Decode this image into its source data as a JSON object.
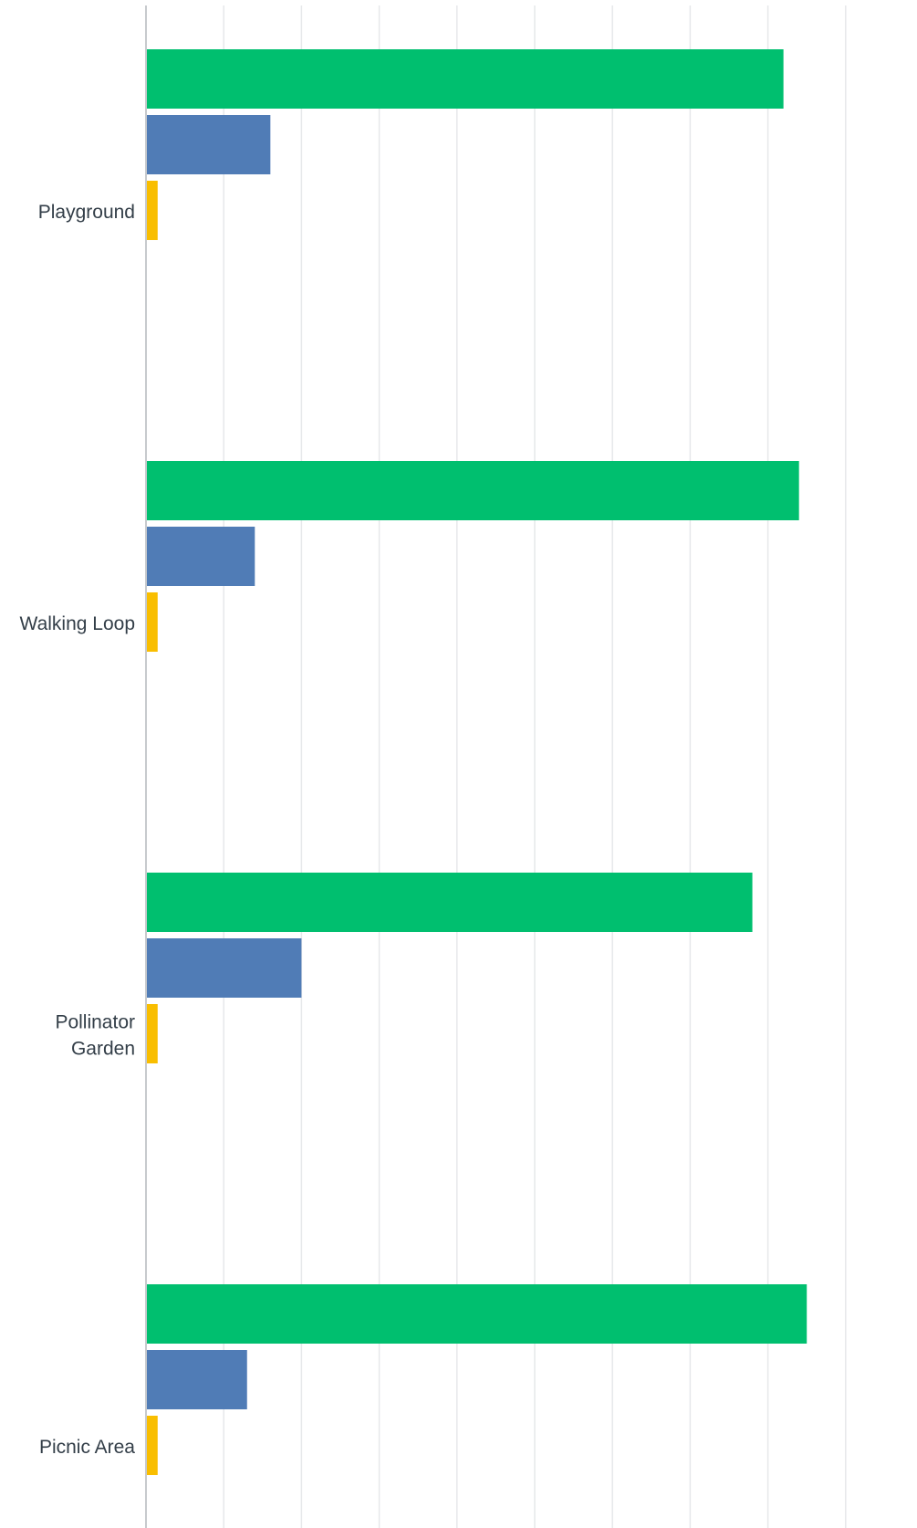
{
  "chart_data": {
    "type": "bar",
    "orientation": "horizontal",
    "categories": [
      "Playground",
      "Walking Loop",
      "Pollinator Garden",
      "Picnic Area"
    ],
    "category_lines": [
      [
        "Playground"
      ],
      [
        "Walking Loop"
      ],
      [
        "Pollinator",
        "Garden"
      ],
      [
        "Picnic Area"
      ]
    ],
    "series": [
      {
        "values": [
          82,
          84,
          78,
          85
        ],
        "color": "#00bf6f"
      },
      {
        "values": [
          16,
          14,
          20,
          13
        ],
        "color": "#507cb6"
      },
      {
        "values": [
          1.5,
          1.5,
          1.5,
          1.5
        ],
        "color": "#f9be00"
      }
    ],
    "xlim": [
      0,
      100
    ],
    "x_tick_labels_visible": false,
    "grid": true,
    "legend": "none"
  },
  "colors": {
    "gridline": "#e6e8ea",
    "axis": "#c7cacd",
    "label_text": "#333e48"
  }
}
